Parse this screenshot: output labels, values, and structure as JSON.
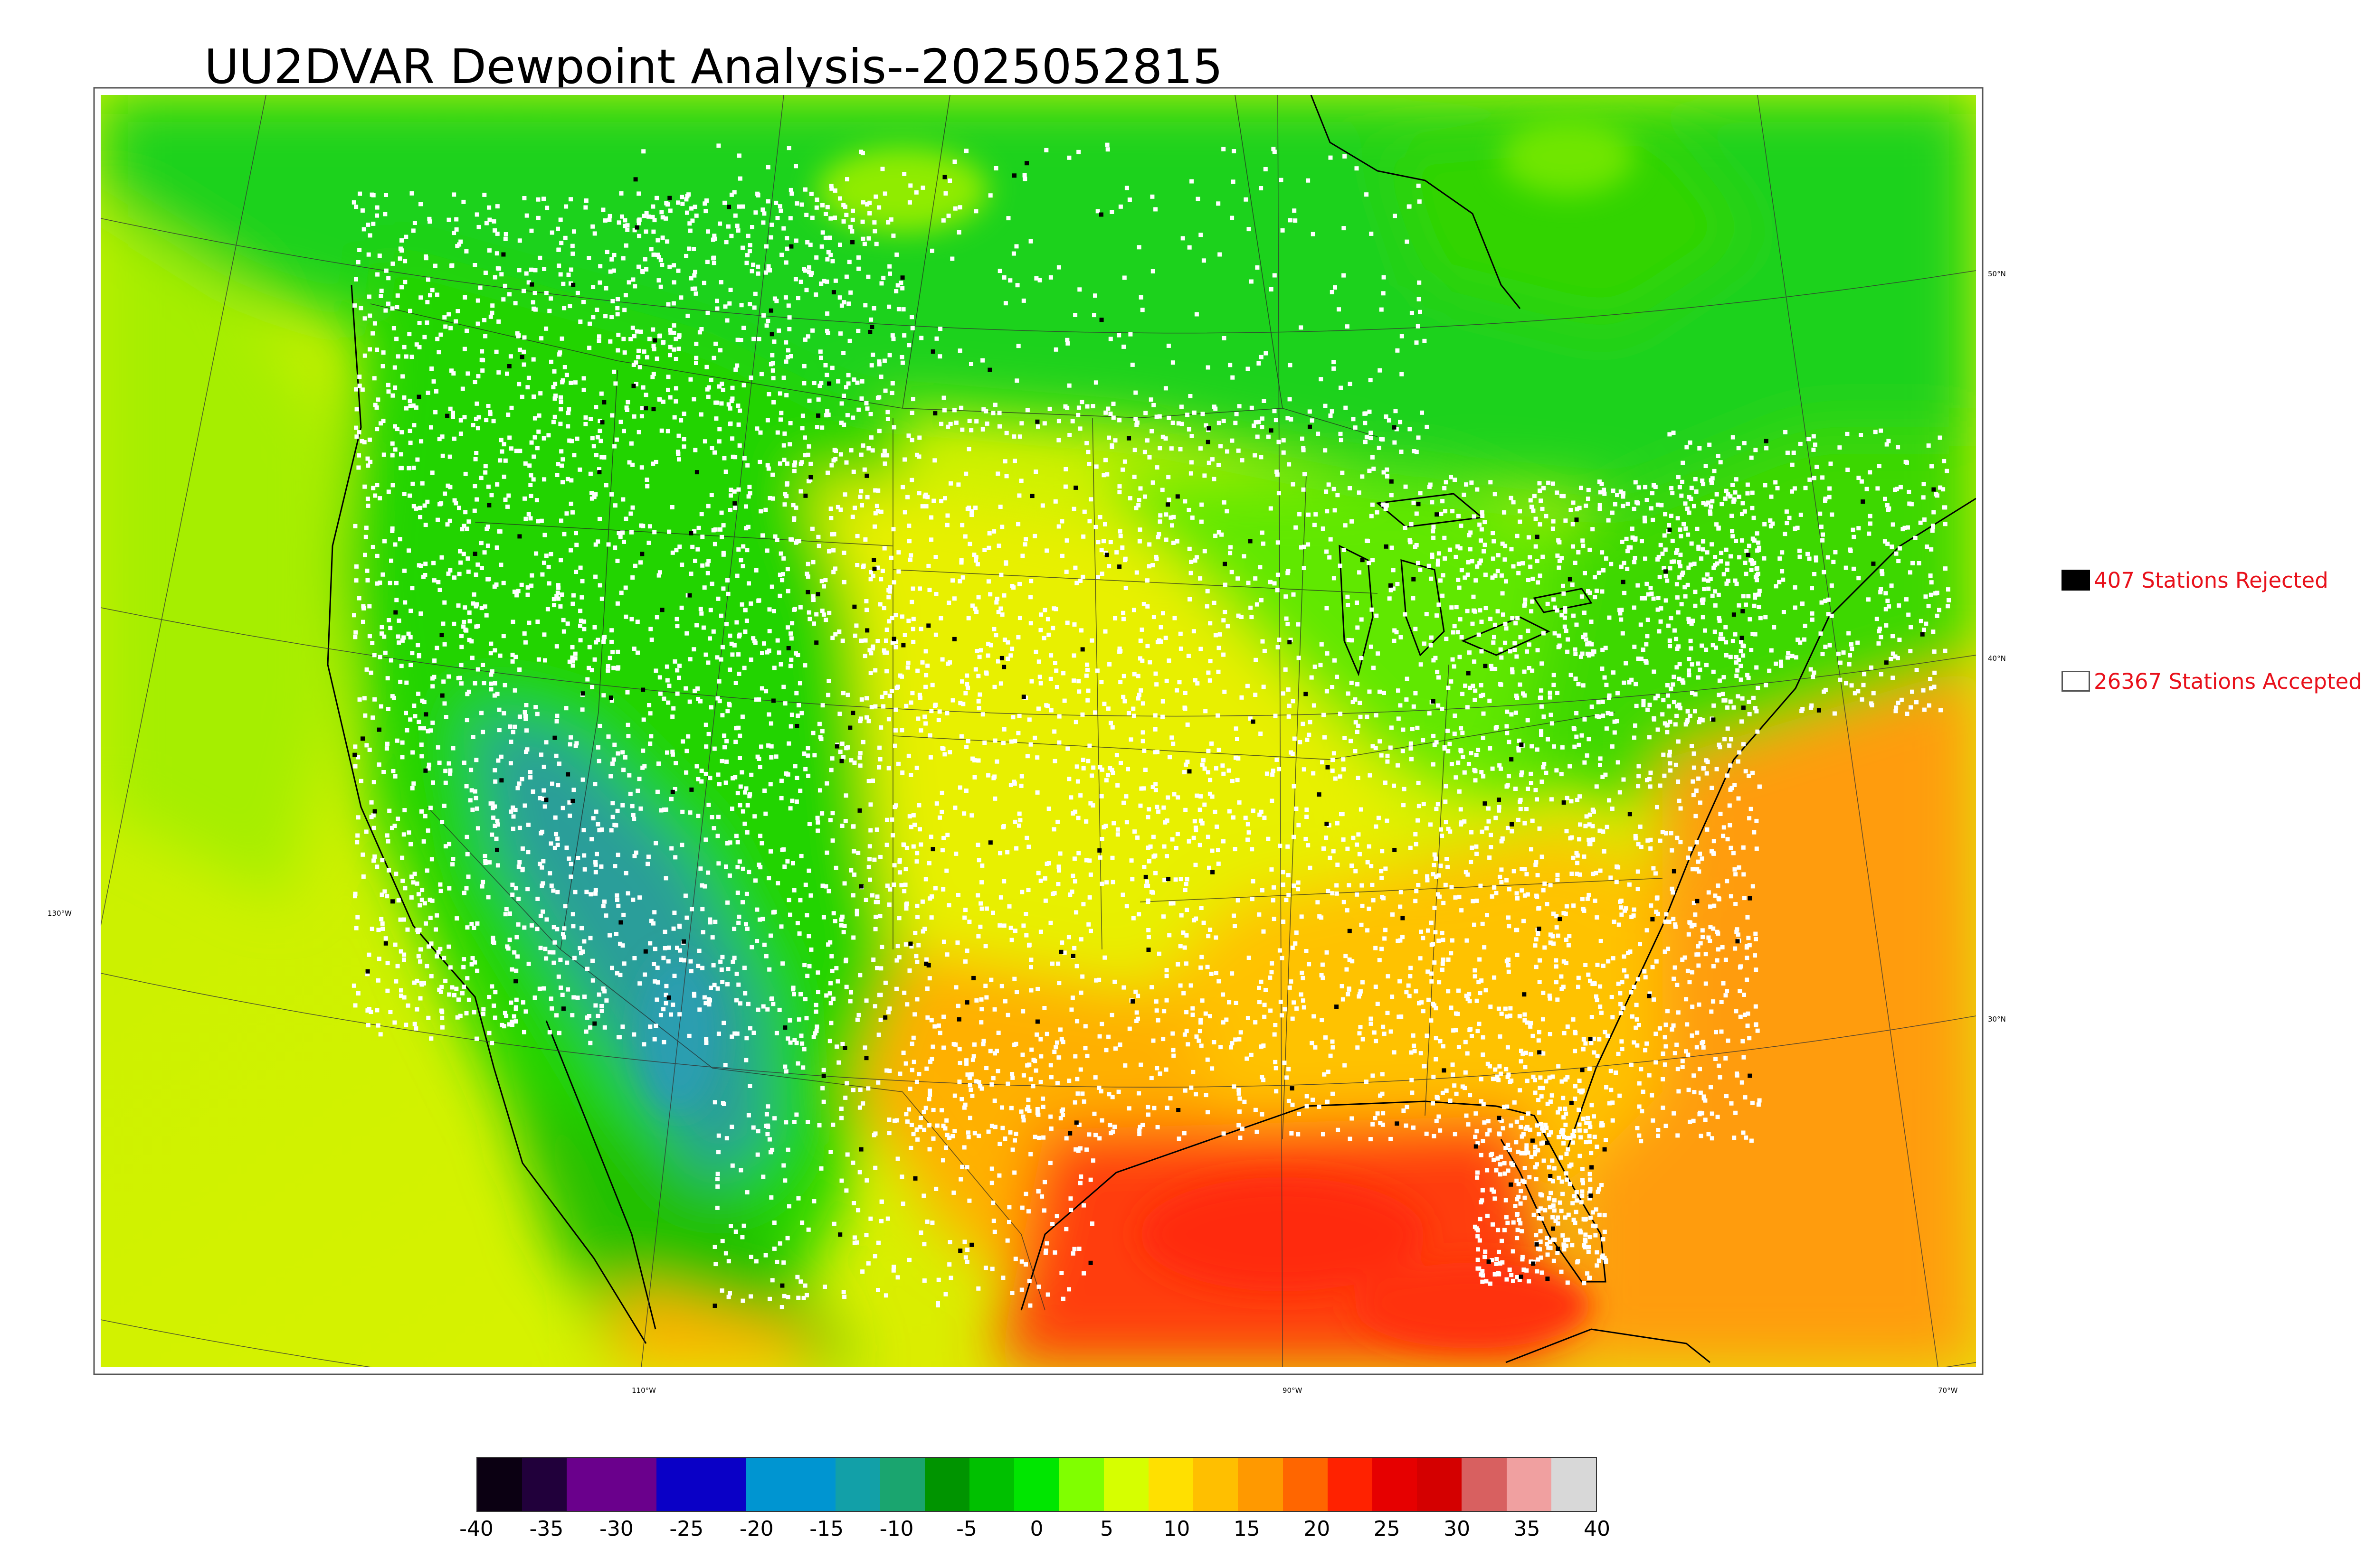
{
  "title": "UU2DVAR Dewpoint Analysis--2025052815",
  "legend": {
    "rejected": {
      "label": "407 Stations Rejected",
      "color": "#000000"
    },
    "accepted": {
      "label": "26367 Stations Accepted",
      "color": "#ffffff"
    }
  },
  "graticule": {
    "lat_labels": [
      "50°N",
      "40°N",
      "30°N"
    ],
    "lon_labels": [
      "130°W",
      "110°W",
      "90°W",
      "70°W"
    ]
  },
  "colorbar": {
    "ticks": [
      "-40",
      "-35",
      "-30",
      "-25",
      "-20",
      "-15",
      "-10",
      "-5",
      "0",
      "5",
      "10",
      "15",
      "20",
      "25",
      "30",
      "35",
      "40"
    ],
    "colors": [
      "#0b0012",
      "#21003b",
      "#6a008c",
      "#6a008c",
      "#0a00c6",
      "#0a00c6",
      "#0095d1",
      "#0095d1",
      "#12a0a8",
      "#1aa56f",
      "#009400",
      "#00c000",
      "#00e600",
      "#80ff00",
      "#d6ff00",
      "#ffe000",
      "#ffbf00",
      "#ff9900",
      "#ff6600",
      "#ff2200",
      "#e60000",
      "#d40000",
      "#d86060",
      "#f0a0a0",
      "#d8d8d8"
    ]
  },
  "colors": {
    "ocean_warm": "#ff9a12",
    "gulf_hot": "#ff3a10",
    "land_green": "#2edf00",
    "pacific_yellow": "#d4f000",
    "plains_yellow": "#f7e800",
    "southwest_teal": "#2aa88a",
    "canada_green": "#18d21a"
  }
}
